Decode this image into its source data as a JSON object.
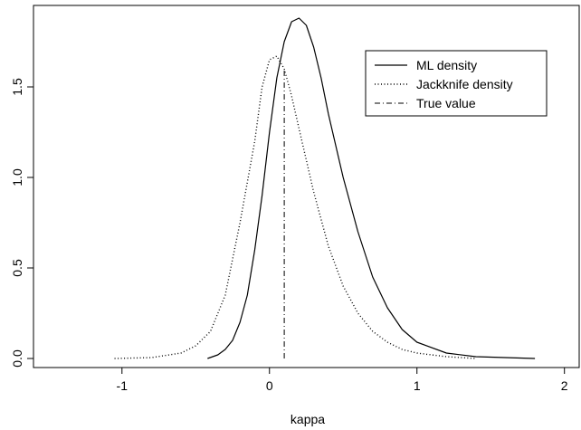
{
  "chart_data": {
    "type": "line",
    "title": "",
    "xlabel": "kappa",
    "ylabel": "",
    "xlim": [
      -1.6,
      2.1
    ],
    "ylim": [
      -0.05,
      1.95
    ],
    "xticks": [
      -1,
      0,
      1,
      2
    ],
    "xtick_labels": [
      "-1",
      "0",
      "1",
      "2"
    ],
    "yticks": [
      0.0,
      0.5,
      1.0,
      1.5
    ],
    "ytick_labels": [
      "0.0",
      "0.5",
      "1.0",
      "1.5"
    ],
    "grid": false,
    "legend_position": "top-right",
    "series": [
      {
        "name": "ML density",
        "style": "solid",
        "color": "#000000",
        "x": [
          -0.42,
          -0.35,
          -0.3,
          -0.25,
          -0.2,
          -0.15,
          -0.1,
          -0.05,
          0.0,
          0.05,
          0.1,
          0.15,
          0.2,
          0.25,
          0.3,
          0.35,
          0.4,
          0.5,
          0.6,
          0.7,
          0.8,
          0.9,
          1.0,
          1.2,
          1.4,
          1.6,
          1.8
        ],
        "y": [
          0.0,
          0.02,
          0.05,
          0.1,
          0.2,
          0.35,
          0.6,
          0.9,
          1.25,
          1.55,
          1.75,
          1.86,
          1.88,
          1.84,
          1.72,
          1.55,
          1.35,
          1.0,
          0.7,
          0.45,
          0.28,
          0.16,
          0.09,
          0.03,
          0.01,
          0.005,
          0.0
        ]
      },
      {
        "name": "Jackknife density",
        "style": "dotted",
        "color": "#000000",
        "x": [
          -1.05,
          -0.8,
          -0.6,
          -0.5,
          -0.4,
          -0.3,
          -0.2,
          -0.1,
          -0.05,
          0.0,
          0.05,
          0.1,
          0.15,
          0.2,
          0.3,
          0.4,
          0.5,
          0.6,
          0.7,
          0.8,
          0.9,
          1.0,
          1.2,
          1.4
        ],
        "y": [
          0.0,
          0.005,
          0.03,
          0.07,
          0.15,
          0.35,
          0.75,
          1.2,
          1.5,
          1.65,
          1.67,
          1.6,
          1.45,
          1.27,
          0.92,
          0.62,
          0.4,
          0.25,
          0.15,
          0.09,
          0.05,
          0.03,
          0.01,
          0.0
        ]
      },
      {
        "name": "True value",
        "style": "dashdot",
        "color": "#000000",
        "x": [
          0.1,
          0.1
        ],
        "y": [
          0.0,
          1.6
        ]
      }
    ]
  }
}
